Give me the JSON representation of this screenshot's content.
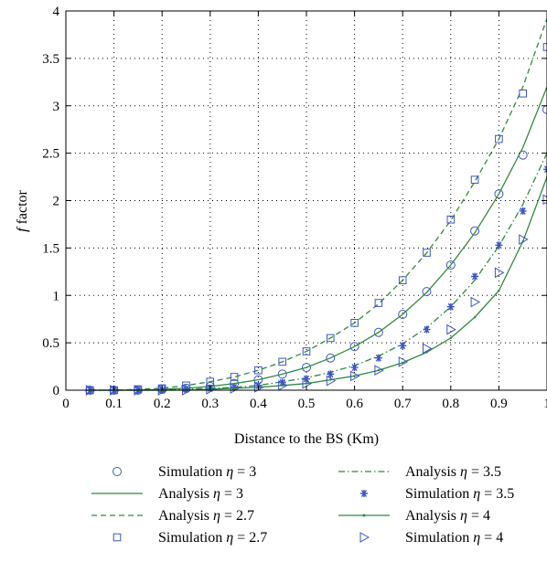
{
  "colors": {
    "line": "#2e8b3e",
    "marker": "#3c55c6",
    "axis": "#000000",
    "grid": "#000000"
  },
  "chart_data": {
    "type": "line",
    "xlabel": "Distance to the BS (Km)",
    "ylabel_italic": "f",
    "ylabel_rest": " factor",
    "xlim": [
      0,
      1
    ],
    "ylim": [
      0,
      4
    ],
    "xticks": [
      0,
      0.1,
      0.2,
      0.3,
      0.4,
      0.5,
      0.6,
      0.7,
      0.8,
      0.9,
      1
    ],
    "xtick_labels": [
      "0",
      "0.1",
      "0.2",
      "0.3",
      "0.4",
      "0.5",
      "0.6",
      "0.7",
      "0.8",
      "0.9",
      "1"
    ],
    "yticks": [
      0,
      0.5,
      1,
      1.5,
      2,
      2.5,
      3,
      3.5,
      4
    ],
    "ytick_labels": [
      "0",
      "0.5",
      "1",
      "1.5",
      "2",
      "2.5",
      "3",
      "3.5",
      "4"
    ],
    "grid": true,
    "legend_position": "bottom",
    "analysis_x": [
      0.05,
      0.1,
      0.15,
      0.2,
      0.25,
      0.3,
      0.35,
      0.4,
      0.45,
      0.5,
      0.55,
      0.6,
      0.65,
      0.7,
      0.75,
      0.8,
      0.85,
      0.9,
      0.95,
      1.0
    ],
    "sim_x": [
      0.05,
      0.1,
      0.15,
      0.2,
      0.25,
      0.3,
      0.35,
      0.4,
      0.45,
      0.5,
      0.55,
      0.6,
      0.65,
      0.7,
      0.75,
      0.8,
      0.85,
      0.9,
      0.95,
      1.0
    ],
    "series": [
      {
        "name": "Simulation η = 3",
        "kind": "markers",
        "marker": "circle",
        "eta": "3",
        "values": [
          0.0,
          0.0,
          0.0,
          0.01,
          0.02,
          0.04,
          0.07,
          0.11,
          0.17,
          0.24,
          0.34,
          0.46,
          0.61,
          0.8,
          1.04,
          1.32,
          1.68,
          2.07,
          2.48,
          2.96
        ]
      },
      {
        "name": "Analysis η = 3",
        "kind": "line",
        "dash": "solid",
        "eta": "3",
        "values": [
          0.0,
          0.0,
          0.0,
          0.01,
          0.02,
          0.04,
          0.07,
          0.11,
          0.17,
          0.24,
          0.34,
          0.46,
          0.61,
          0.8,
          1.03,
          1.32,
          1.66,
          2.07,
          2.56,
          3.2
        ]
      },
      {
        "name": "Analysis η = 2.7",
        "kind": "line",
        "dash": "dashed",
        "eta": "2.7",
        "values": [
          0.0,
          0.0,
          0.01,
          0.02,
          0.05,
          0.09,
          0.14,
          0.21,
          0.3,
          0.41,
          0.55,
          0.71,
          0.91,
          1.16,
          1.45,
          1.79,
          2.2,
          2.65,
          3.2,
          3.92
        ]
      },
      {
        "name": "Simulation η = 2.7",
        "kind": "markers",
        "marker": "square",
        "eta": "2.7",
        "values": [
          0.0,
          0.0,
          0.01,
          0.02,
          0.05,
          0.09,
          0.14,
          0.21,
          0.3,
          0.41,
          0.55,
          0.71,
          0.92,
          1.16,
          1.45,
          1.8,
          2.22,
          2.65,
          3.13,
          3.62
        ]
      },
      {
        "name": "Analysis η = 3.5",
        "kind": "line",
        "dash": "dashdot",
        "eta": "3.5",
        "values": [
          0.0,
          0.0,
          0.0,
          0.0,
          0.01,
          0.02,
          0.03,
          0.05,
          0.09,
          0.13,
          0.19,
          0.26,
          0.36,
          0.49,
          0.66,
          0.88,
          1.16,
          1.52,
          1.96,
          2.5
        ]
      },
      {
        "name": "Simulation η = 3.5",
        "kind": "markers",
        "marker": "star",
        "eta": "3.5",
        "values": [
          0.0,
          0.0,
          0.0,
          0.0,
          0.01,
          0.02,
          0.03,
          0.05,
          0.08,
          0.12,
          0.17,
          0.24,
          0.34,
          0.47,
          0.64,
          0.88,
          1.2,
          1.53,
          1.89,
          2.33
        ]
      },
      {
        "name": "Analysis η = 4",
        "kind": "line",
        "dash": "solid-dot",
        "eta": "4",
        "values": [
          0.0,
          0.0,
          0.0,
          0.0,
          0.0,
          0.01,
          0.02,
          0.03,
          0.05,
          0.07,
          0.11,
          0.15,
          0.21,
          0.29,
          0.4,
          0.55,
          0.77,
          1.05,
          1.57,
          2.25
        ]
      },
      {
        "name": "Simulation η = 4",
        "kind": "markers",
        "marker": "triangle-right",
        "eta": "4",
        "values": [
          0.0,
          0.0,
          0.0,
          0.0,
          0.0,
          0.01,
          0.02,
          0.03,
          0.05,
          0.07,
          0.1,
          0.15,
          0.21,
          0.3,
          0.44,
          0.64,
          0.93,
          1.24,
          1.59,
          2.01
        ]
      }
    ],
    "legend": [
      {
        "series_index": 0,
        "label": "Simulation ",
        "eta": "3"
      },
      {
        "series_index": 4,
        "label": "Analysis ",
        "eta": "3.5"
      },
      {
        "series_index": 1,
        "label": "Analysis ",
        "eta": "3"
      },
      {
        "series_index": 5,
        "label": "Simulation ",
        "eta": "3.5"
      },
      {
        "series_index": 2,
        "label": "Analysis ",
        "eta": "2.7"
      },
      {
        "series_index": 6,
        "label": "Analysis ",
        "eta": "4"
      },
      {
        "series_index": 3,
        "label": "Simulation ",
        "eta": "2.7"
      },
      {
        "series_index": 7,
        "label": "Simulation ",
        "eta": "4"
      }
    ]
  }
}
